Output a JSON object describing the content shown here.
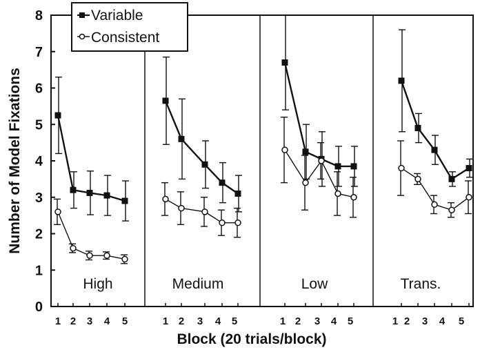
{
  "chart_data": {
    "type": "line",
    "ylabel": "Number of Model Fixations",
    "xlabel": "Block (20 trials/block)",
    "ylim": [
      0,
      8
    ],
    "yticks": [
      "0",
      "1",
      "2",
      "3",
      "4",
      "5",
      "6",
      "7",
      "8"
    ],
    "blocks": [
      "1",
      "2",
      "3",
      "4",
      "5"
    ],
    "legend": {
      "placement": "top-left",
      "entries": [
        {
          "name": "Variable",
          "marker": "square-filled"
        },
        {
          "name": "Consistent",
          "marker": "circle-open"
        }
      ]
    },
    "panels": [
      {
        "label": "High",
        "series": [
          {
            "name": "Variable",
            "values": [
              5.25,
              3.2,
              3.12,
              3.05,
              2.9
            ],
            "errors": [
              1.05,
              0.5,
              0.6,
              0.55,
              0.55
            ]
          },
          {
            "name": "Consistent",
            "values": [
              2.6,
              1.6,
              1.4,
              1.4,
              1.3
            ],
            "errors": [
              0.35,
              0.12,
              0.12,
              0.1,
              0.12
            ]
          }
        ]
      },
      {
        "label": "Medium",
        "series": [
          {
            "name": "Variable",
            "values": [
              5.65,
              4.6,
              3.9,
              3.4,
              3.1
            ],
            "errors": [
              1.2,
              1.1,
              0.65,
              0.55,
              0.5
            ]
          },
          {
            "name": "Consistent",
            "values": [
              2.95,
              2.7,
              2.6,
              2.3,
              2.3
            ],
            "errors": [
              0.45,
              0.45,
              0.4,
              0.35,
              0.4
            ]
          }
        ]
      },
      {
        "label": "Low",
        "series": [
          {
            "name": "Variable",
            "values": [
              6.7,
              4.25,
              4.05,
              3.85,
              3.85
            ],
            "errors": [
              1.3,
              0.75,
              0.75,
              0.55,
              0.55
            ]
          },
          {
            "name": "Consistent",
            "values": [
              4.3,
              3.4,
              4.0,
              3.1,
              3.0
            ],
            "errors": [
              0.9,
              0.75,
              0.5,
              0.6,
              0.55
            ]
          }
        ]
      },
      {
        "label": "Trans.",
        "series": [
          {
            "name": "Variable",
            "values": [
              6.2,
              4.9,
              4.3,
              3.5,
              3.8
            ],
            "errors": [
              1.4,
              0.4,
              0.4,
              0.2,
              0.25
            ]
          },
          {
            "name": "Consistent",
            "values": [
              3.8,
              3.5,
              2.8,
              2.65,
              3.0
            ],
            "errors": [
              0.75,
              0.15,
              0.25,
              0.2,
              0.45
            ]
          }
        ]
      }
    ]
  }
}
